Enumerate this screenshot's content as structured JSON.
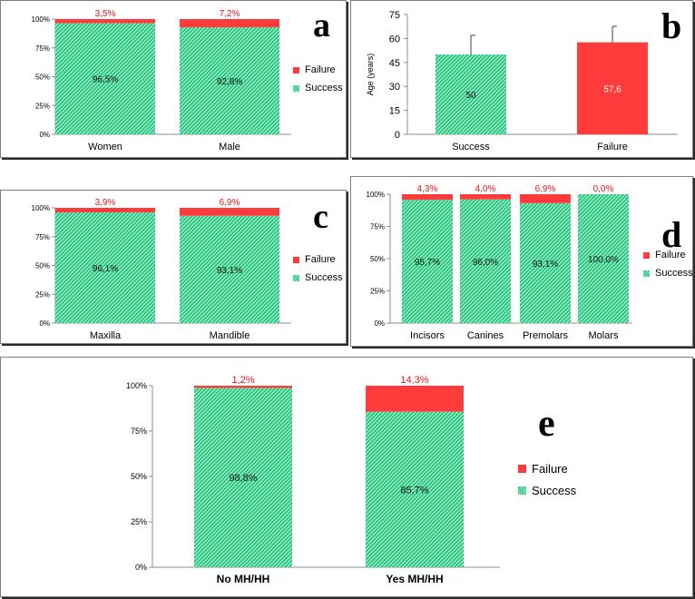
{
  "colors": {
    "failure": "#ff3b3b",
    "success": "#18c27a",
    "success_light": "#a9ecc8",
    "failure_label": "#e8141b"
  },
  "legend": {
    "failure": "Failure",
    "success": "Success"
  },
  "panels": {
    "a": {
      "letter": "a"
    },
    "b": {
      "letter": "b"
    },
    "c": {
      "letter": "c"
    },
    "d": {
      "letter": "d"
    },
    "e": {
      "letter": "e"
    }
  },
  "chart_data": [
    {
      "id": "a",
      "type": "bar",
      "stacked": true,
      "categories": [
        "Women",
        "Male"
      ],
      "series": [
        {
          "name": "Success",
          "values": [
            96.5,
            92.8
          ],
          "labels": [
            "96,5%",
            "92,8%"
          ]
        },
        {
          "name": "Failure",
          "values": [
            3.5,
            7.2
          ],
          "labels": [
            "3,5%",
            "7,2%"
          ]
        }
      ],
      "yticks": [
        "0%",
        "25%",
        "50%",
        "75%",
        "100%"
      ],
      "ylim": [
        0,
        100
      ],
      "legend_position": "right"
    },
    {
      "id": "b",
      "type": "bar",
      "stacked": false,
      "categories": [
        "Success",
        "Failure"
      ],
      "values": [
        50,
        57.6
      ],
      "labels": [
        "50",
        "57,6"
      ],
      "errors": [
        12,
        10
      ],
      "ylabel": "Age (years)",
      "yticks": [
        "0",
        "15",
        "30",
        "45",
        "60",
        "75"
      ],
      "ylim": [
        0,
        75
      ]
    },
    {
      "id": "c",
      "type": "bar",
      "stacked": true,
      "categories": [
        "Maxilla",
        "Mandible"
      ],
      "series": [
        {
          "name": "Success",
          "values": [
            96.1,
            93.1
          ],
          "labels": [
            "96,1%",
            "93,1%"
          ]
        },
        {
          "name": "Failure",
          "values": [
            3.9,
            6.9
          ],
          "labels": [
            "3,9%",
            "6,9%"
          ]
        }
      ],
      "yticks": [
        "0%",
        "25%",
        "50%",
        "75%",
        "100%"
      ],
      "ylim": [
        0,
        100
      ],
      "legend_position": "right"
    },
    {
      "id": "d",
      "type": "bar",
      "stacked": true,
      "categories": [
        "Incisors",
        "Canines",
        "Premolars",
        "Molars"
      ],
      "series": [
        {
          "name": "Success",
          "values": [
            95.7,
            96.0,
            93.1,
            100.0
          ],
          "labels": [
            "95,7%",
            "96,0%",
            "93,1%",
            "100,0%"
          ]
        },
        {
          "name": "Failure",
          "values": [
            4.3,
            4.0,
            6.9,
            0.0
          ],
          "labels": [
            "4,3%",
            "4,0%",
            "6,9%",
            "0,0%"
          ]
        }
      ],
      "yticks": [
        "0%",
        "25%",
        "50%",
        "75%",
        "100%"
      ],
      "ylim": [
        0,
        100
      ],
      "legend_position": "right"
    },
    {
      "id": "e",
      "type": "bar",
      "stacked": true,
      "categories": [
        "No MH/HH",
        "Yes MH/HH"
      ],
      "series": [
        {
          "name": "Success",
          "values": [
            98.8,
            85.7
          ],
          "labels": [
            "98,8%",
            "85,7%"
          ]
        },
        {
          "name": "Failure",
          "values": [
            1.2,
            14.3
          ],
          "labels": [
            "1,2%",
            "14,3%"
          ]
        }
      ],
      "yticks": [
        "0%",
        "25%",
        "50%",
        "75%",
        "100%"
      ],
      "ylim": [
        0,
        100
      ],
      "legend_position": "right"
    }
  ]
}
